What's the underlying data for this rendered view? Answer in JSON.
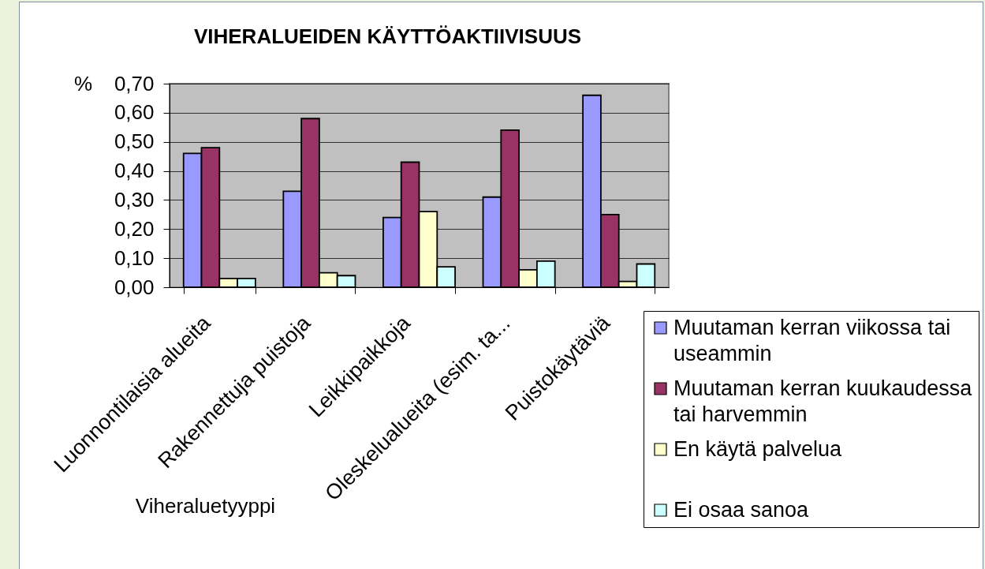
{
  "chart_data": {
    "type": "bar",
    "title": "VIHERALUEIDEN KÄYTTÖAKTIIVISUUS",
    "xlabel": "Viheraluetyyppi",
    "ylabel": "%",
    "categories": [
      "Luonnontilaisia alueita",
      "Rakennettuja puistoja",
      "Leikkipaikkoja",
      "Oleskelualueita (esim. ta...",
      "Puistokäytäviä"
    ],
    "series": [
      {
        "name": "Muutaman kerran viikossa tai useammin",
        "color": "#9999ff",
        "values": [
          0.46,
          0.33,
          0.24,
          0.31,
          0.66
        ]
      },
      {
        "name": "Muutaman kerran kuukaudessa tai harvemmin",
        "color": "#993366",
        "values": [
          0.48,
          0.58,
          0.43,
          0.54,
          0.25
        ]
      },
      {
        "name": "En käytä palvelua",
        "color": "#ffffcc",
        "values": [
          0.03,
          0.05,
          0.26,
          0.06,
          0.02
        ]
      },
      {
        "name": "Ei osaa sanoa",
        "color": "#ccffff",
        "values": [
          0.03,
          0.04,
          0.07,
          0.09,
          0.08
        ]
      }
    ],
    "ylim": [
      0,
      0.7
    ],
    "yticks": [
      {
        "value": 0,
        "label": "0,00"
      },
      {
        "value": 0.1,
        "label": "0,10"
      },
      {
        "value": 0.2,
        "label": "0,20"
      },
      {
        "value": 0.3,
        "label": "0,30"
      },
      {
        "value": 0.4,
        "label": "0,40"
      },
      {
        "value": 0.5,
        "label": "0,50"
      },
      {
        "value": 0.6,
        "label": "0,60"
      },
      {
        "value": 0.7,
        "label": "0,70"
      }
    ],
    "grid": "y",
    "legend": "bottom right"
  }
}
